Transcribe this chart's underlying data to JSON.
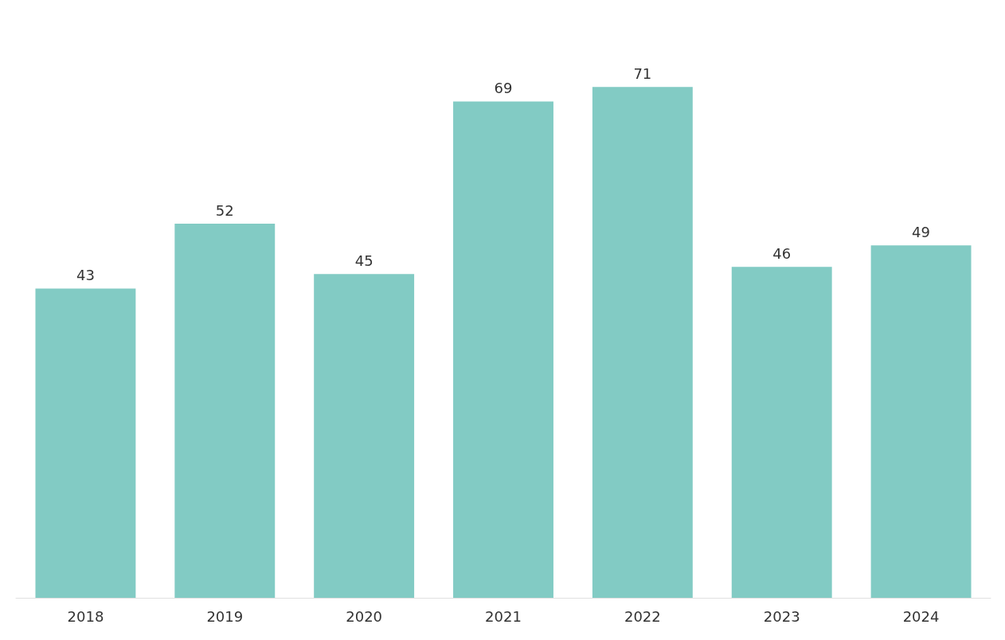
{
  "chart_data": {
    "type": "bar",
    "categories": [
      "2018",
      "2019",
      "2020",
      "2021",
      "2022",
      "2023",
      "2024"
    ],
    "values": [
      43,
      52,
      45,
      69,
      71,
      46,
      49
    ],
    "color": "#82cbc4",
    "data_labels": true
  }
}
